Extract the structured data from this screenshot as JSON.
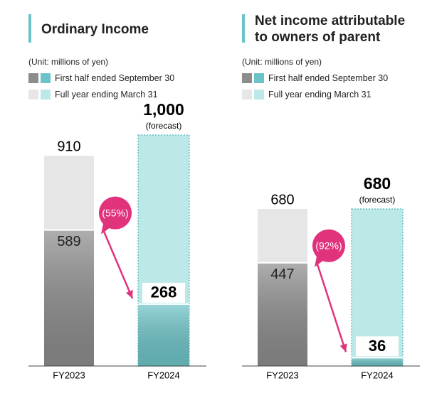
{
  "chart_data": [
    {
      "type": "bar",
      "title": "Ordinary Income",
      "unit": "(Unit: millions of yen)",
      "categories": [
        "FY2023",
        "FY2024"
      ],
      "forecast": [
        false,
        true
      ],
      "forecast_label": "(forecast)",
      "series": [
        {
          "name": "First half ended September 30",
          "colors": [
            "#8c8c8c",
            "#6cc3c7"
          ],
          "values": [
            589,
            268
          ]
        },
        {
          "name": "Full year ending March 31",
          "colors": [
            "#e6e6e6",
            "#bde8e8"
          ],
          "values": [
            910,
            1000
          ],
          "value_labels": [
            "910",
            "1,000"
          ]
        }
      ],
      "annotation": "(55%)"
    },
    {
      "type": "bar",
      "title": "Net income attributable to owners of parent",
      "unit": "(Unit: millions of yen)",
      "categories": [
        "FY2023",
        "FY2024"
      ],
      "forecast": [
        false,
        true
      ],
      "forecast_label": "(forecast)",
      "series": [
        {
          "name": "First half ended September 30",
          "colors": [
            "#8c8c8c",
            "#6cc3c7"
          ],
          "values": [
            447,
            36
          ]
        },
        {
          "name": "Full year ending March 31",
          "colors": [
            "#e6e6e6",
            "#bde8e8"
          ],
          "values": [
            680,
            680
          ],
          "value_labels": [
            "680",
            "680"
          ]
        }
      ],
      "annotation": "(92%)"
    }
  ]
}
